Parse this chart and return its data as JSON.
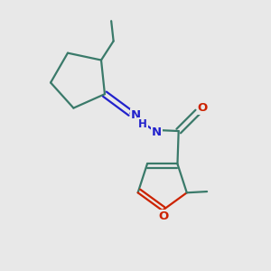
{
  "bg_color": "#e8e8e8",
  "bond_color": "#3a7a6a",
  "nitrogen_color": "#2222cc",
  "oxygen_color": "#cc2200",
  "lw": 1.6,
  "figsize": [
    3.0,
    3.0
  ],
  "dpi": 100,
  "xlim": [
    -1,
    11
  ],
  "ylim": [
    -1,
    11
  ]
}
